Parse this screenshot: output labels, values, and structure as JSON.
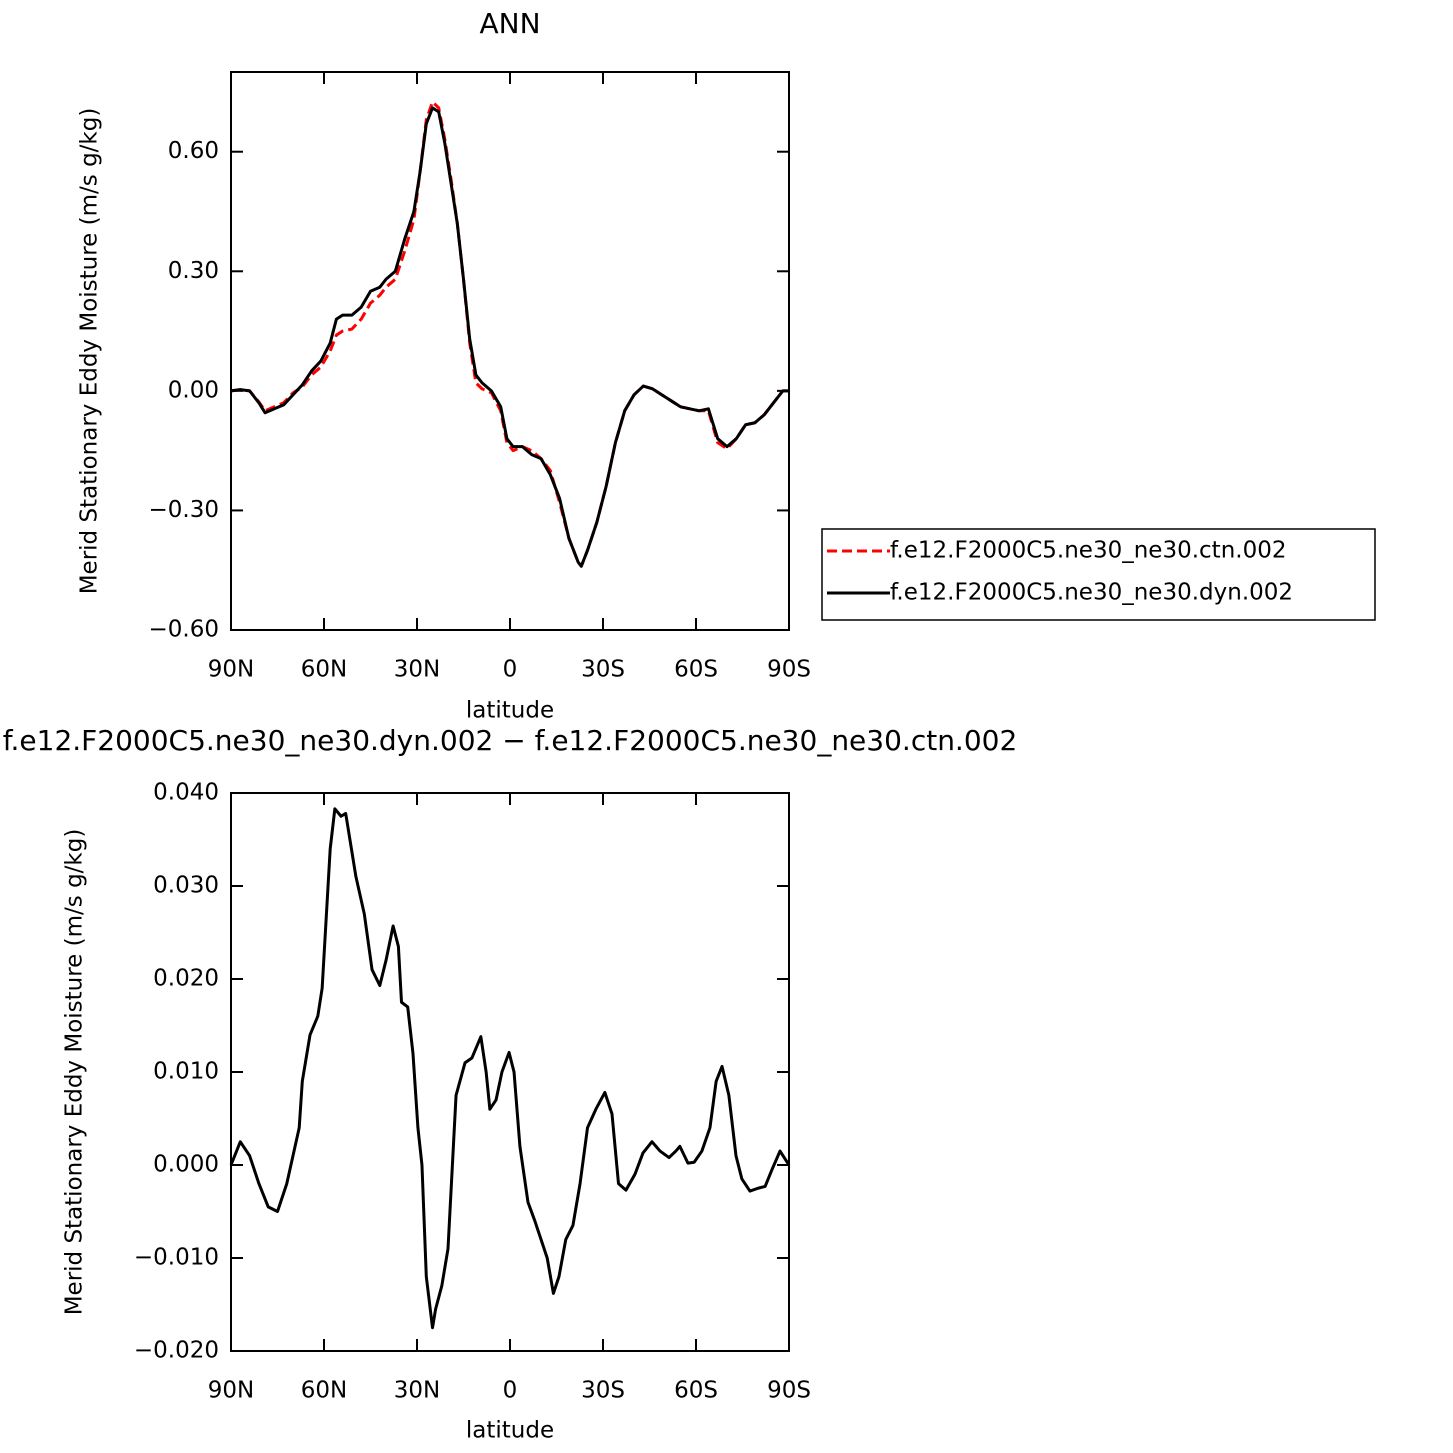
{
  "chart_data": [
    {
      "type": "line",
      "title": "ANN",
      "xlabel": "latitude",
      "ylabel": "Merid Stationary Eddy Moisture (m/s g/kg)",
      "xlim": [
        90,
        -90
      ],
      "xticks": [
        {
          "value": 90,
          "label": "90N"
        },
        {
          "value": 60,
          "label": "60N"
        },
        {
          "value": 30,
          "label": "30N"
        },
        0,
        {
          "value": -30,
          "label": "30S"
        },
        {
          "value": -60,
          "label": "60S"
        },
        {
          "value": -90,
          "label": "90S"
        }
      ],
      "ylim": [
        -0.6,
        0.8
      ],
      "yticks": [
        {
          "value": -0.6,
          "label": "−0.60"
        },
        {
          "value": -0.3,
          "label": "−0.30"
        },
        {
          "value": 0,
          "label": "0.00"
        },
        {
          "value": 0.3,
          "label": "0.30"
        },
        {
          "value": 0.6,
          "label": "0.60"
        }
      ],
      "legend": "right",
      "x": [
        90,
        87,
        84,
        81,
        79,
        76,
        73,
        70,
        67,
        64,
        61,
        58,
        56,
        54,
        51,
        48,
        45,
        42,
        40,
        37,
        34,
        31,
        29,
        27,
        25,
        23,
        21,
        19,
        17,
        15,
        13,
        11,
        9,
        6,
        3,
        1,
        -1,
        -4,
        -7,
        -10,
        -13,
        -16,
        -19,
        -22,
        -23,
        -25,
        -28,
        -31,
        -34,
        -37,
        -40,
        -43,
        -46,
        -49,
        -52,
        -55,
        -58,
        -61,
        -64,
        -67,
        -70,
        -73,
        -76,
        -79,
        -82,
        -85,
        -88,
        -90
      ],
      "series": [
        {
          "name": "f.e12.F2000C5.ne30_ne30.ctn.002",
          "color": "#ff0000",
          "style": "dashed",
          "values": [
            0,
            0.003,
            0,
            -0.028,
            -0.05,
            -0.04,
            -0.03,
            -0.005,
            0.01,
            0.04,
            0.06,
            0.1,
            0.14,
            0.15,
            0.155,
            0.18,
            0.22,
            0.24,
            0.26,
            0.28,
            0.35,
            0.43,
            0.55,
            0.68,
            0.725,
            0.71,
            0.63,
            0.53,
            0.42,
            0.28,
            0.12,
            0.02,
            0.005,
            -0.005,
            -0.05,
            -0.13,
            -0.15,
            -0.14,
            -0.15,
            -0.17,
            -0.2,
            -0.28,
            -0.37,
            -0.43,
            -0.44,
            -0.4,
            -0.33,
            -0.24,
            -0.13,
            -0.05,
            -0.01,
            0.012,
            0.005,
            -0.01,
            -0.025,
            -0.04,
            -0.045,
            -0.05,
            -0.05,
            -0.13,
            -0.145,
            -0.12,
            -0.085,
            -0.08,
            -0.06,
            -0.03,
            0,
            0
          ]
        },
        {
          "name": "f.e12.F2000C5.ne30_ne30.dyn.002",
          "color": "#000000",
          "style": "solid",
          "values": [
            0,
            0.003,
            0,
            -0.03,
            -0.055,
            -0.045,
            -0.035,
            -0.01,
            0.015,
            0.05,
            0.075,
            0.12,
            0.18,
            0.19,
            0.19,
            0.21,
            0.25,
            0.26,
            0.28,
            0.3,
            0.38,
            0.45,
            0.55,
            0.67,
            0.71,
            0.7,
            0.62,
            0.52,
            0.42,
            0.28,
            0.13,
            0.04,
            0.02,
            0,
            -0.04,
            -0.12,
            -0.14,
            -0.14,
            -0.16,
            -0.17,
            -0.21,
            -0.27,
            -0.37,
            -0.43,
            -0.44,
            -0.4,
            -0.33,
            -0.24,
            -0.13,
            -0.05,
            -0.01,
            0.012,
            0.005,
            -0.01,
            -0.025,
            -0.04,
            -0.045,
            -0.05,
            -0.045,
            -0.12,
            -0.14,
            -0.12,
            -0.085,
            -0.08,
            -0.06,
            -0.03,
            0,
            0
          ]
        }
      ]
    },
    {
      "type": "line",
      "title": "f.e12.F2000C5.ne30_ne30.dyn.002 − f.e12.F2000C5.ne30_ne30.ctn.002",
      "xlabel": "latitude",
      "ylabel": "Merid Stationary Eddy Moisture (m/s g/kg)",
      "xlim": [
        90,
        -90
      ],
      "xticks": [
        {
          "value": 90,
          "label": "90N"
        },
        {
          "value": 60,
          "label": "60N"
        },
        {
          "value": 30,
          "label": "30N"
        },
        0,
        {
          "value": -30,
          "label": "30S"
        },
        {
          "value": -60,
          "label": "60S"
        },
        {
          "value": -90,
          "label": "90S"
        }
      ],
      "ylim": [
        -0.02,
        0.04
      ],
      "yticks": [
        {
          "value": -0.02,
          "label": "−0.020"
        },
        {
          "value": -0.01,
          "label": "−0.010"
        },
        {
          "value": 0,
          "label": "0.000"
        },
        {
          "value": 0.01,
          "label": "0.010"
        },
        {
          "value": 0.02,
          "label": "0.020"
        },
        {
          "value": 0.03,
          "label": "0.030"
        },
        {
          "value": 0.04,
          "label": "0.040"
        }
      ],
      "x": [
        90,
        87,
        84,
        81,
        78,
        75,
        72,
        70,
        68,
        67,
        64.5,
        62,
        60.6,
        58,
        56.5,
        54.5,
        53,
        49.7,
        47,
        44.5,
        42,
        40,
        37.7,
        36,
        35,
        33,
        31.3,
        29.7,
        28.4,
        27,
        25,
        24,
        22,
        20,
        17.4,
        14.5,
        12.3,
        9.4,
        7.7,
        6.5,
        4.5,
        2.6,
        0.3,
        -1.3,
        -3.2,
        -5.8,
        -8,
        -10,
        -12,
        -14,
        -15.8,
        -18,
        -20.3,
        -22.6,
        -25,
        -27.7,
        -30.6,
        -32.9,
        -35,
        -37.4,
        -40.3,
        -42.9,
        -45.8,
        -48.4,
        -51.3,
        -53.5,
        -54.8,
        -57.4,
        -59.4,
        -61.9,
        -64.5,
        -66.5,
        -68.4,
        -70.6,
        -72.9,
        -74.8,
        -77.4,
        -80,
        -82.3,
        -84.5,
        -87.1,
        -90
      ],
      "series": [
        {
          "color": "#000000",
          "style": "solid",
          "values": [
            0,
            0.0025,
            0.001,
            -0.002,
            -0.0045,
            -0.005,
            -0.002,
            0.001,
            0.004,
            0.009,
            0.014,
            0.016,
            0.019,
            0.034,
            0.0383,
            0.0375,
            0.0378,
            0.031,
            0.027,
            0.021,
            0.0193,
            0.022,
            0.0257,
            0.0235,
            0.0175,
            0.017,
            0.012,
            0.004,
            0,
            -0.012,
            -0.0175,
            -0.0155,
            -0.013,
            -0.009,
            0.0075,
            0.011,
            0.0115,
            0.0138,
            0.01,
            0.006,
            0.007,
            0.01,
            0.0121,
            0.01,
            0.002,
            -0.004,
            -0.006,
            -0.008,
            -0.01,
            -0.0138,
            -0.012,
            -0.008,
            -0.0065,
            -0.002,
            0.004,
            0.006,
            0.0078,
            0.0055,
            -0.002,
            -0.0027,
            -0.001,
            0.0013,
            0.0025,
            0.0015,
            0.0008,
            0.0015,
            0.002,
            0.0002,
            0.0003,
            0.0015,
            0.004,
            0.009,
            0.0106,
            0.0075,
            0.001,
            -0.0015,
            -0.0028,
            -0.0025,
            -0.0023,
            -0.0005,
            0.0015,
            0
          ]
        }
      ]
    }
  ]
}
